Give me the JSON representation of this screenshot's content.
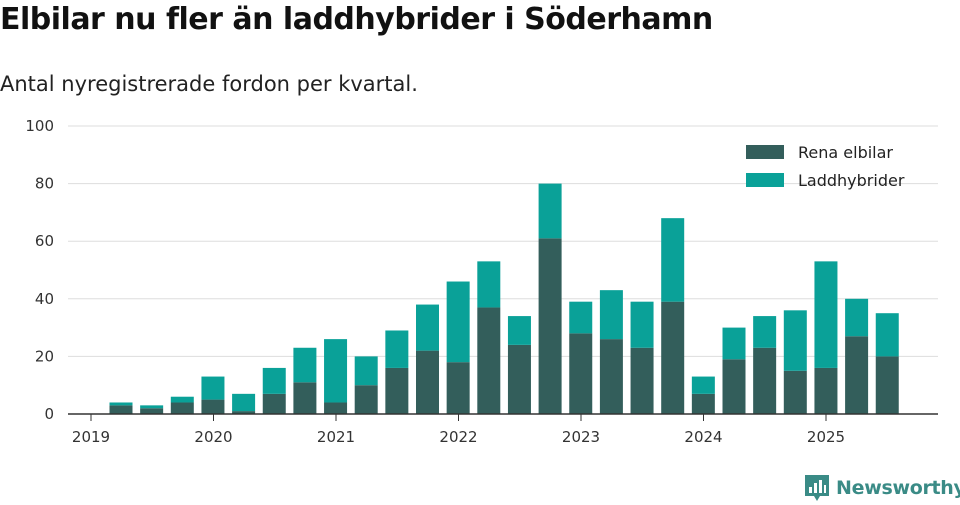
{
  "title": "Elbilar nu fler än laddhybrider i Söderhamn",
  "subtitle": "Antal nyregistrerade fordon per kvartal.",
  "brand": {
    "name": "Newsworthy",
    "icon": "newsworthy-logo-icon"
  },
  "colors": {
    "elbilar": "#335e5b",
    "laddhybrider": "#0aa198",
    "grid": "#dddddd",
    "axis": "#333333",
    "brand": "#3a8b86"
  },
  "chart_data": {
    "type": "bar",
    "stacked": true,
    "title": "Elbilar nu fler än laddhybrider i Söderhamn",
    "subtitle": "Antal nyregistrerade fordon per kvartal.",
    "xlabel": "",
    "ylabel": "",
    "ylim": [
      0,
      100
    ],
    "yticks": [
      0,
      20,
      40,
      60,
      80,
      100
    ],
    "xtick_labels": [
      "2019",
      "2020",
      "2021",
      "2022",
      "2023",
      "2024",
      "2025"
    ],
    "categories": [
      "2019 Q2",
      "2019 Q3",
      "2019 Q4",
      "2020 Q1",
      "2020 Q2",
      "2020 Q3",
      "2020 Q4",
      "2021 Q1",
      "2021 Q2",
      "2021 Q3",
      "2021 Q4",
      "2022 Q1",
      "2022 Q2",
      "2022 Q3",
      "2022 Q4",
      "2023 Q1",
      "2023 Q2",
      "2023 Q3",
      "2023 Q4",
      "2024 Q1",
      "2024 Q2",
      "2024 Q3",
      "2024 Q4",
      "2025 Q1",
      "2025 Q2",
      "2025 Q3"
    ],
    "series": [
      {
        "name": "Rena elbilar",
        "values": [
          3,
          2,
          4,
          5,
          1,
          7,
          11,
          4,
          10,
          16,
          22,
          18,
          37,
          24,
          61,
          28,
          26,
          23,
          39,
          7,
          19,
          23,
          15,
          16,
          27,
          20
        ]
      },
      {
        "name": "Laddhybrider",
        "values": [
          1,
          1,
          2,
          8,
          6,
          9,
          12,
          22,
          10,
          13,
          16,
          28,
          16,
          10,
          19,
          11,
          17,
          16,
          29,
          6,
          11,
          11,
          21,
          37,
          13,
          15
        ]
      }
    ],
    "grid": true,
    "legend": "top-right"
  }
}
